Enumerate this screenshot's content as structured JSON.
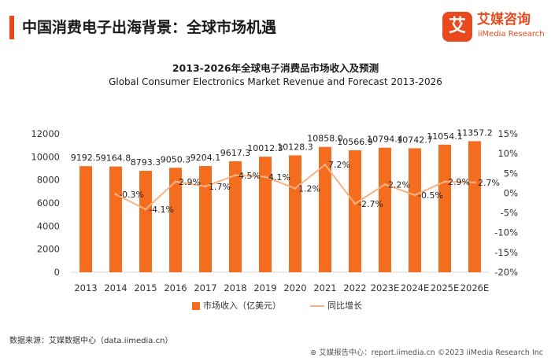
{
  "header": {
    "title": "中国消费电子出海背景：全球市场机遇"
  },
  "brand": {
    "mark": "艾",
    "name": "艾媒咨询",
    "sub": "iiMedia Research",
    "color": "#e8491d"
  },
  "chart_data": {
    "type": "bar",
    "title": "2013-2026年全球电子消费品市场收入及预测",
    "subtitle": "Global Consumer Electronics Market Revenue and Forecast 2013-2026",
    "categories": [
      "2013",
      "2014",
      "2015",
      "2016",
      "2017",
      "2018",
      "2019",
      "2020",
      "2021",
      "2022",
      "2023E",
      "2024E",
      "2025E",
      "2026E"
    ],
    "series": [
      {
        "name": "市场收入（亿美元）",
        "type": "bar",
        "axis": "left",
        "color": "#f46d1e",
        "values": [
          9192.5,
          9164.8,
          8793.3,
          9050.3,
          9204.1,
          9617.3,
          10012.3,
          10128.3,
          10858.0,
          10566.9,
          10794.4,
          10742.7,
          11054.1,
          11357.2
        ],
        "labels": [
          "9192.5",
          "9164.8",
          "8793.3",
          "9050.3",
          "9204.1",
          "9617.3",
          "10012.3",
          "10128.3",
          "10858.0",
          "10566.9",
          "10794.4",
          "10742.7",
          "11054.1",
          "11357.2"
        ]
      },
      {
        "name": "同比增长",
        "type": "line",
        "axis": "right",
        "color": "#f7b183",
        "values": [
          null,
          -0.3,
          -4.1,
          2.9,
          1.7,
          4.5,
          4.1,
          1.2,
          7.2,
          -2.7,
          2.2,
          -0.5,
          2.9,
          2.7
        ],
        "labels": [
          "",
          "-0.3%",
          "-4.1%",
          "2.9%",
          "1.7%",
          "4.5%",
          "4.1%",
          "1.2%",
          "7.2%",
          "-2.7%",
          "2.2%",
          "-0.5%",
          "2.9%",
          "2.7%"
        ]
      }
    ],
    "y_left": {
      "range": [
        0,
        12000
      ],
      "ticks": [
        "0",
        "2000",
        "4000",
        "6000",
        "8000",
        "10000",
        "12000"
      ]
    },
    "y_right": {
      "range": [
        -20,
        15
      ],
      "ticks": [
        "-20%",
        "-15%",
        "-10%",
        "-5%",
        "0%",
        "5%",
        "10%",
        "15%"
      ]
    },
    "grid": false,
    "legend_position": "bottom"
  },
  "legend": {
    "bar_label": "市场收入（亿美元）",
    "line_label": "同比增长"
  },
  "source": "数据来源：艾媒数据中心（data.iimedia.cn）",
  "footer": {
    "icon": "report-icon",
    "text": "艾媒报告中心：report.iimedia.cn  ©2023  iiMedia Research  Inc"
  }
}
